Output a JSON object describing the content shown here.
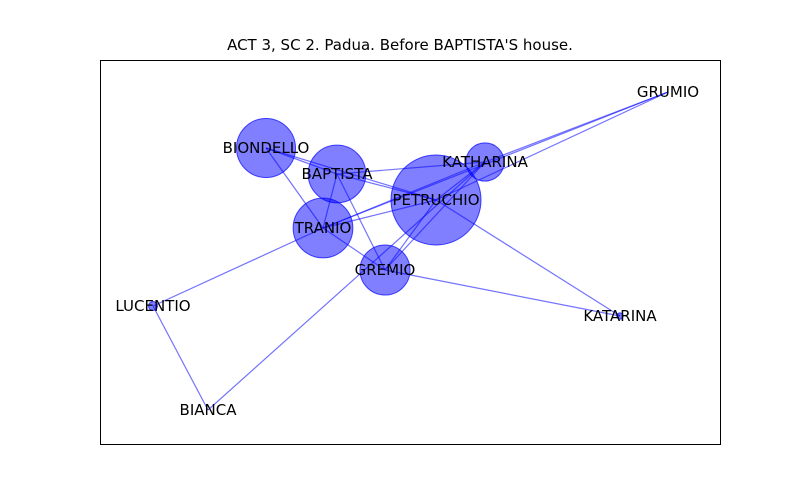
{
  "title": "ACT 3, SC 2. Padua. Before BAPTISTA'S house.",
  "colors": {
    "node": "#0000ff",
    "edge": "#0000ff",
    "frame": "#000000"
  },
  "nodes": [
    {
      "id": "PETRUCHIO",
      "label": "PETRUCHIO",
      "weight": 1.0
    },
    {
      "id": "BAPTISTA",
      "label": "BAPTISTA",
      "weight": 0.41
    },
    {
      "id": "TRANIO",
      "label": "TRANIO",
      "weight": 0.44
    },
    {
      "id": "BIONDELLO",
      "label": "BIONDELLO",
      "weight": 0.43
    },
    {
      "id": "GREMIO",
      "label": "GREMIO",
      "weight": 0.31
    },
    {
      "id": "KATHARINA",
      "label": "KATHARINA",
      "weight": 0.18
    },
    {
      "id": "LUCENTIO",
      "label": "LUCENTIO",
      "weight": 0.01
    },
    {
      "id": "KATARINA",
      "label": "KATARINA",
      "weight": 0.005
    },
    {
      "id": "GRUMIO",
      "label": "GRUMIO",
      "weight": 0
    },
    {
      "id": "BIANCA",
      "label": "BIANCA",
      "weight": 0
    }
  ],
  "edges": [
    [
      "GRUMIO",
      "KATHARINA"
    ],
    [
      "GRUMIO",
      "PETRUCHIO"
    ],
    [
      "GRUMIO",
      "TRANIO"
    ],
    [
      "BIONDELLO",
      "PETRUCHIO"
    ],
    [
      "BIONDELLO",
      "TRANIO"
    ],
    [
      "BIONDELLO",
      "BAPTISTA"
    ],
    [
      "BAPTISTA",
      "PETRUCHIO"
    ],
    [
      "BAPTISTA",
      "KATHARINA"
    ],
    [
      "BAPTISTA",
      "TRANIO"
    ],
    [
      "BAPTISTA",
      "GREMIO"
    ],
    [
      "PETRUCHIO",
      "KATHARINA"
    ],
    [
      "PETRUCHIO",
      "TRANIO"
    ],
    [
      "PETRUCHIO",
      "GREMIO"
    ],
    [
      "PETRUCHIO",
      "KATARINA"
    ],
    [
      "KATHARINA",
      "TRANIO"
    ],
    [
      "KATHARINA",
      "GREMIO"
    ],
    [
      "TRANIO",
      "GREMIO"
    ],
    [
      "TRANIO",
      "LUCENTIO"
    ],
    [
      "LUCENTIO",
      "BIANCA"
    ],
    [
      "BIANCA",
      "KATHARINA"
    ],
    [
      "GREMIO",
      "KATARINA"
    ]
  ]
}
